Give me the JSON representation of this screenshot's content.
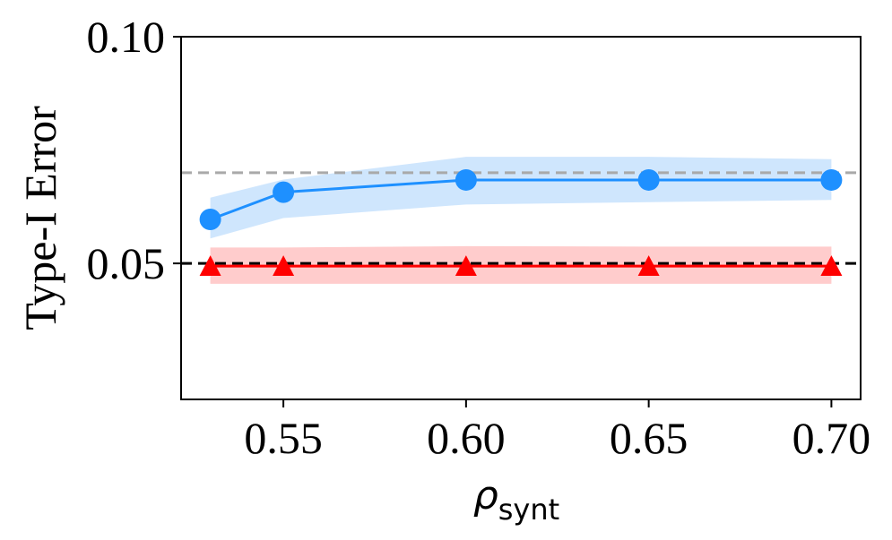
{
  "chart_data": {
    "type": "line",
    "title": "",
    "xlabel": "ρ",
    "xlabel_sub": "synt",
    "ylabel": "Type-I Error",
    "xlim": [
      0.522,
      0.708
    ],
    "ylim": [
      0.02,
      0.1
    ],
    "x_ticks": [
      0.55,
      0.6,
      0.65,
      0.7
    ],
    "x_tick_labels": [
      "0.55",
      "0.60",
      "0.65",
      "0.70"
    ],
    "y_ticks": [
      0.05,
      0.1
    ],
    "y_tick_labels": [
      "0.05",
      "0.10"
    ],
    "x": [
      0.53,
      0.55,
      0.6,
      0.65,
      0.7
    ],
    "grid": false,
    "legend": "none",
    "series": [
      {
        "color": "#1e90ff",
        "band_color": "#cfe6fd",
        "marker": "circle",
        "values": [
          0.0597,
          0.0657,
          0.0684,
          0.0684,
          0.0684
        ],
        "lower": [
          0.0555,
          0.06,
          0.063,
          0.0635,
          0.064
        ],
        "upper": [
          0.0645,
          0.0685,
          0.0735,
          0.0735,
          0.073
        ]
      },
      {
        "color": "#ff0000",
        "band_color": "#ffcccc",
        "marker": "triangle",
        "values": [
          0.0494,
          0.0494,
          0.0494,
          0.0494,
          0.0494
        ],
        "lower": [
          0.0455,
          0.0455,
          0.0455,
          0.0455,
          0.0455
        ],
        "upper": [
          0.0535,
          0.0535,
          0.0538,
          0.0537,
          0.0537
        ]
      }
    ],
    "reference_lines": [
      {
        "y": 0.07,
        "color": "#a9a9a9",
        "style": "dashed"
      },
      {
        "y": 0.05,
        "color": "#000000",
        "style": "dashed"
      }
    ]
  }
}
